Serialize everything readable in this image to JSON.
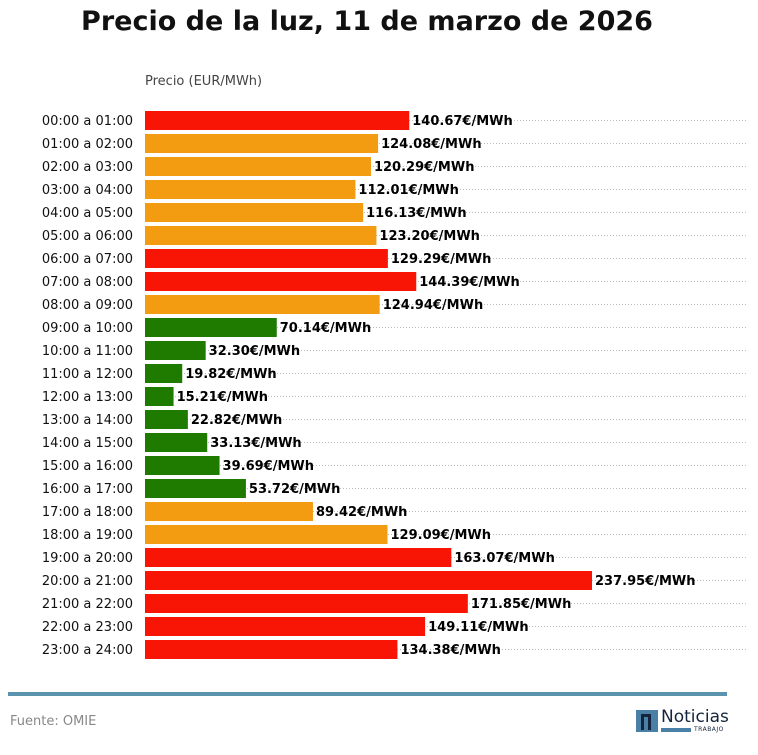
{
  "chart_data": {
    "type": "bar",
    "orientation": "horizontal",
    "title": "Precio de la luz, 11 de marzo de 2026",
    "xlabel": "Precio (EUR/MWh)",
    "value_suffix": "€/MWh",
    "grid": "dotted horizontal",
    "categories": [
      "00:00 a 01:00",
      "01:00 a 02:00",
      "02:00 a 03:00",
      "03:00 a 04:00",
      "04:00 a 05:00",
      "05:00 a 06:00",
      "06:00 a 07:00",
      "07:00 a 08:00",
      "08:00 a 09:00",
      "09:00 a 10:00",
      "10:00 a 11:00",
      "11:00 a 12:00",
      "12:00 a 13:00",
      "13:00 a 14:00",
      "14:00 a 15:00",
      "15:00 a 16:00",
      "16:00 a 17:00",
      "17:00 a 18:00",
      "18:00 a 19:00",
      "19:00 a 20:00",
      "20:00 a 21:00",
      "21:00 a 22:00",
      "22:00 a 23:00",
      "23:00 a 24:00"
    ],
    "values": [
      140.67,
      124.08,
      120.29,
      112.01,
      116.13,
      123.2,
      129.29,
      144.39,
      124.94,
      70.14,
      32.3,
      19.82,
      15.21,
      22.82,
      33.13,
      39.69,
      53.72,
      89.42,
      129.09,
      163.07,
      237.95,
      171.85,
      149.11,
      134.38
    ],
    "labels": [
      "140.67€/MWh",
      "124.08€/MWh",
      "120.29€/MWh",
      "112.01€/MWh",
      "116.13€/MWh",
      "123.20€/MWh",
      "129.29€/MWh",
      "144.39€/MWh",
      "124.94€/MWh",
      "70.14€/MWh",
      "32.30€/MWh",
      "19.82€/MWh",
      "15.21€/MWh",
      "22.82€/MWh",
      "33.13€/MWh",
      "39.69€/MWh",
      "53.72€/MWh",
      "89.42€/MWh",
      "129.09€/MWh",
      "163.07€/MWh",
      "237.95€/MWh",
      "171.85€/MWh",
      "149.11€/MWh",
      "134.38€/MWh"
    ],
    "bar_levels": [
      "high",
      "mid",
      "mid",
      "mid",
      "mid",
      "mid",
      "high",
      "high",
      "mid",
      "low",
      "low",
      "low",
      "low",
      "low",
      "low",
      "low",
      "low",
      "mid",
      "mid",
      "high",
      "high",
      "high",
      "high",
      "high"
    ],
    "colors": {
      "high": "#f91505",
      "mid": "#f39c12",
      "low": "#1e7b00"
    }
  },
  "footer": {
    "source": "Fuente: OMIE",
    "logo_text": "Noticias",
    "logo_sub": "TRABAJO",
    "rule_color": "#5b93ad"
  }
}
